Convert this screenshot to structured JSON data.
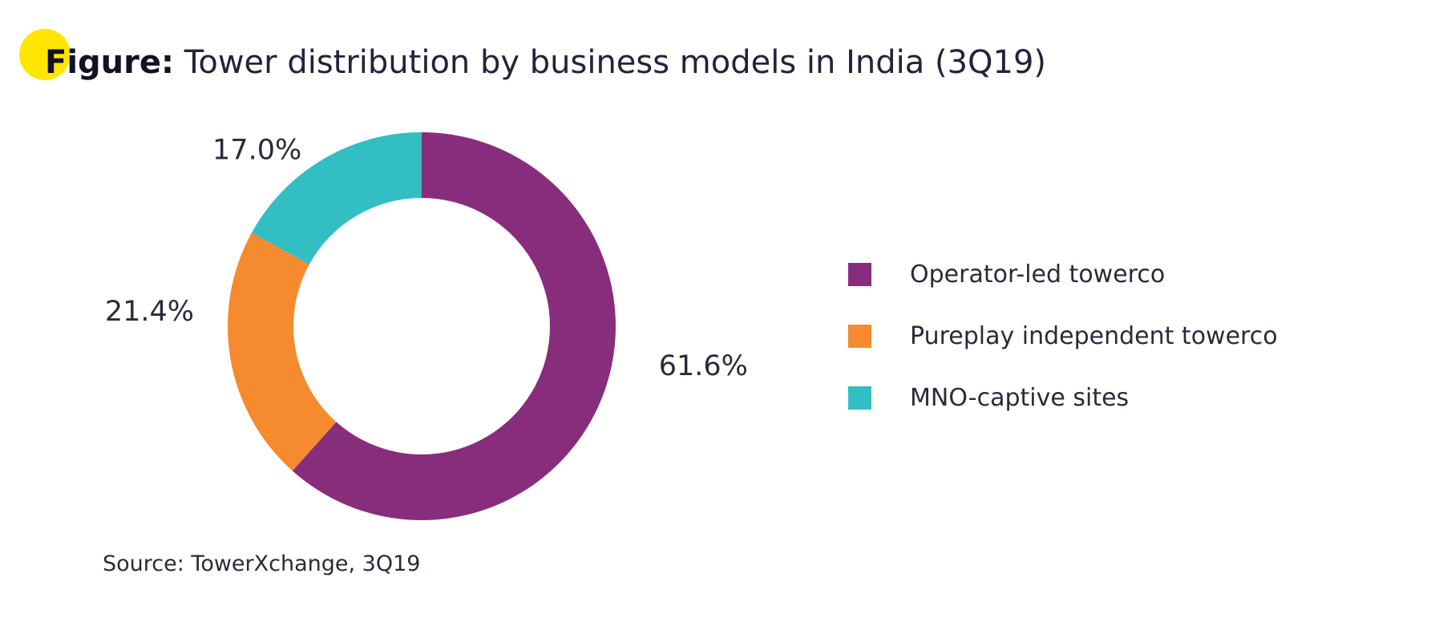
{
  "figure": {
    "lead": "Figure:",
    "title": "Tower distribution by business models in India (3Q19)",
    "accent_color": "#FFE600"
  },
  "chart_data": {
    "type": "pie",
    "style": "donut",
    "categories": [
      "Operator-led towerco",
      "Pureplay independent towerco",
      "MNO-captive sites"
    ],
    "values": [
      61.6,
      21.4,
      17.0
    ],
    "labels": [
      "61.6%",
      "21.4%",
      "17.0%"
    ],
    "colors": [
      "#882D7B",
      "#F58B2E",
      "#33BEC3"
    ],
    "legend_position": "right"
  },
  "source": "Source: TowerXchange, 3Q19"
}
